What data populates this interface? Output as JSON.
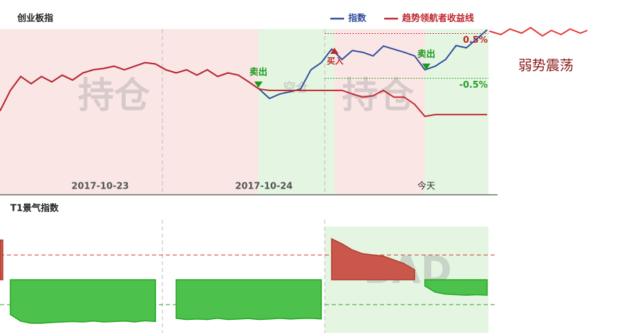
{
  "chart_data": [
    {
      "type": "line",
      "title": "创业板指",
      "series": [
        {
          "name": "指数",
          "color": "#2f4c9c",
          "values": [
            -1.23,
            -0.77,
            -0.46,
            -0.62,
            -0.46,
            -0.58,
            -0.43,
            -0.54,
            -0.38,
            -0.31,
            -0.28,
            -0.23,
            -0.31,
            -0.23,
            -0.15,
            -0.18,
            -0.31,
            -0.38,
            -0.31,
            -0.43,
            -0.31,
            -0.46,
            -0.38,
            -0.43,
            -0.58,
            -0.74,
            -0.95,
            -0.85,
            -0.8,
            -0.74,
            -0.31,
            -0.15,
            0.15,
            -0.08,
            0.12,
            0.08,
            0,
            0.22,
            0.15,
            0.08,
            0,
            -0.31,
            -0.23,
            -0.08,
            0.23,
            0.18,
            0.38,
            0.58
          ]
        },
        {
          "name": "趋势领航者收益线",
          "color": "#c0272d",
          "values": [
            -1.23,
            -0.77,
            -0.46,
            -0.62,
            -0.46,
            -0.58,
            -0.43,
            -0.54,
            -0.38,
            -0.31,
            -0.28,
            -0.23,
            -0.31,
            -0.23,
            -0.15,
            -0.18,
            -0.31,
            -0.38,
            -0.31,
            -0.43,
            -0.31,
            -0.46,
            -0.38,
            -0.43,
            -0.58,
            -0.74,
            -0.77,
            -0.77,
            -0.77,
            -0.77,
            -0.77,
            -0.77,
            -0.77,
            -0.77,
            -0.85,
            -0.92,
            -0.89,
            -0.77,
            -0.92,
            -0.92,
            -1.08,
            -1.35,
            -1.31,
            -1.31,
            -1.31,
            -1.31,
            -1.31,
            -1.31
          ]
        }
      ],
      "ylim": [
        -3.1,
        0.6
      ],
      "reference_lines": [
        {
          "value": 0.5,
          "label": "0.5%",
          "color": "#c0272d"
        },
        {
          "value": -0.5,
          "label": "-0.5%",
          "color": "#2a9d2a"
        }
      ],
      "day_labels": [
        "2017-10-23",
        "2017-10-24",
        "今天"
      ],
      "position_labels": [
        "持仓",
        "空仓",
        "持仓"
      ],
      "signals": [
        "卖出",
        "买入",
        "卖出"
      ],
      "annotation": "弱势震荡"
    },
    {
      "type": "area",
      "title": "T1景气指数",
      "values": [
        1.6,
        -1.4,
        -1.67,
        -1.75,
        -1.75,
        -1.72,
        -1.7,
        -1.68,
        -1.7,
        -1.66,
        -1.7,
        -1.68,
        -1.66,
        -1.7,
        -1.65,
        -1.68,
        null,
        -1.55,
        -1.6,
        -1.58,
        -1.6,
        -1.55,
        -1.6,
        -1.58,
        -1.56,
        -1.6,
        -1.58,
        -1.55,
        -1.58,
        -1.56,
        -1.55,
        -1.58,
        1.65,
        1.45,
        1.2,
        1.05,
        1.0,
        0.95,
        0.8,
        0.65,
        0.4,
        -0.25,
        -0.5,
        -0.58,
        -0.6,
        -0.62,
        -0.6,
        -0.62
      ],
      "positive_color": "#c9574b",
      "negative_color": "#4cc24c",
      "ylim": [
        -2.14,
        2.42
      ],
      "reference_lines": [
        {
          "value": 1,
          "color": "#d0312d"
        },
        {
          "value": -1,
          "color": "#2a9d2a"
        }
      ],
      "watermark": "BAD"
    }
  ]
}
